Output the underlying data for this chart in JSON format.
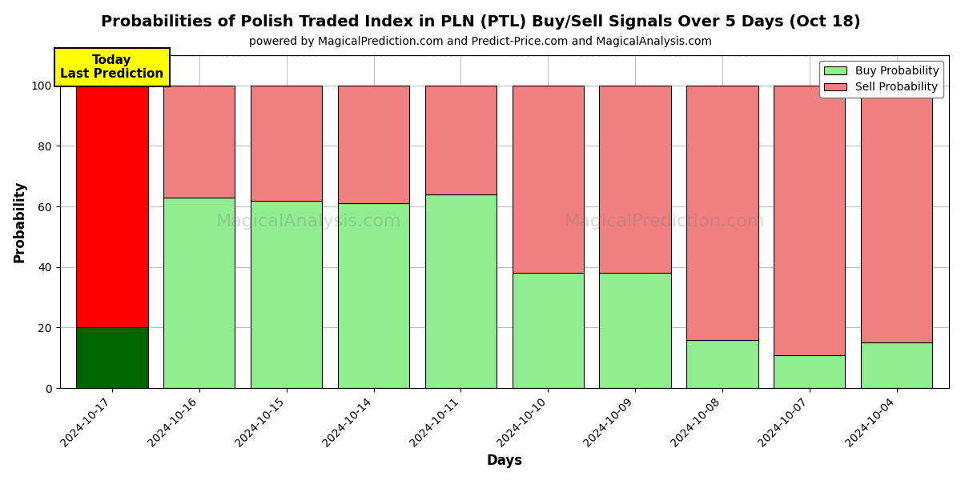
{
  "title": "Probabilities of Polish Traded Index in PLN (PTL) Buy/Sell Signals Over 5 Days (Oct 18)",
  "subtitle": "powered by MagicalPrediction.com and Predict-Price.com and MagicalAnalysis.com",
  "xlabel": "Days",
  "ylabel": "Probability",
  "categories": [
    "2024-10-17",
    "2024-10-16",
    "2024-10-15",
    "2024-10-14",
    "2024-10-11",
    "2024-10-10",
    "2024-10-09",
    "2024-10-08",
    "2024-10-07",
    "2024-10-04"
  ],
  "buy_values": [
    20,
    63,
    62,
    61,
    64,
    38,
    38,
    16,
    11,
    15
  ],
  "sell_values": [
    80,
    37,
    38,
    39,
    36,
    62,
    62,
    84,
    89,
    85
  ],
  "today_bar_buy_color": "#006400",
  "today_bar_sell_color": "#FF0000",
  "other_bar_buy_color": "#90EE90",
  "other_bar_sell_color": "#F08080",
  "bar_edgecolor": "#000000",
  "ylim": [
    0,
    110
  ],
  "yticks": [
    0,
    20,
    40,
    60,
    80,
    100
  ],
  "dashed_line_y": 110,
  "legend_buy_label": "Buy Probability",
  "legend_sell_label": "Sell Probability",
  "annotation_text": "Today\nLast Prediction",
  "annotation_bg": "#FFFF00",
  "background_color": "#FFFFFF",
  "grid_color": "#BBBBBB",
  "title_fontsize": 14,
  "subtitle_fontsize": 10,
  "axis_label_fontsize": 12,
  "tick_fontsize": 10
}
